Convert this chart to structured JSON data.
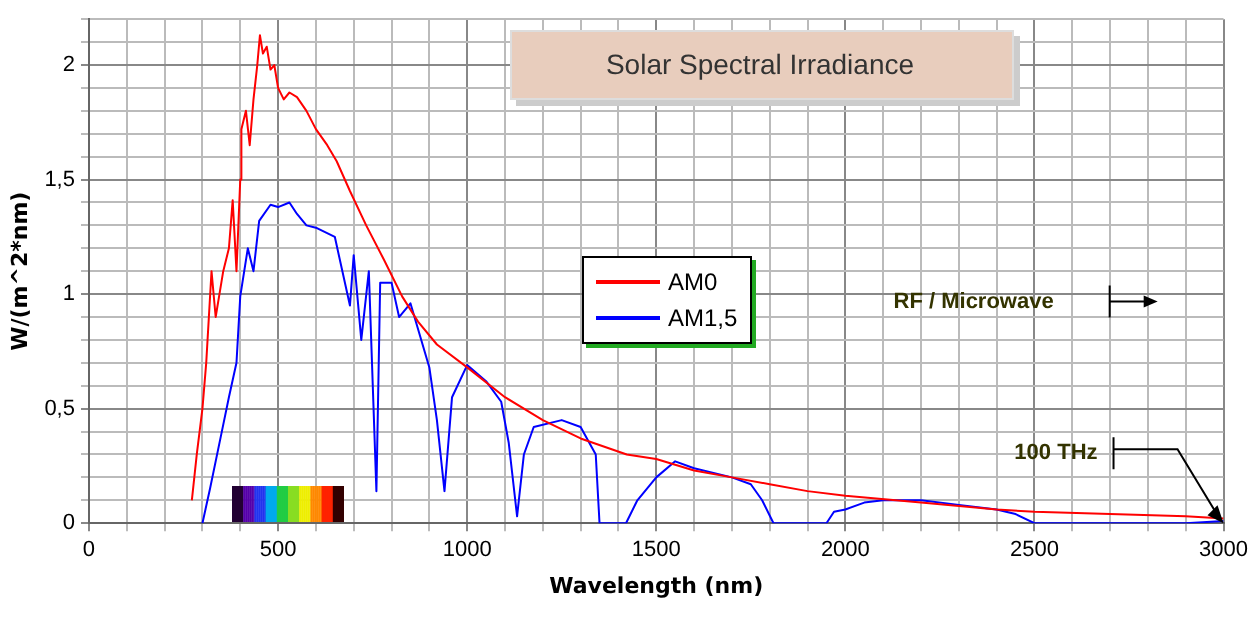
{
  "chart_data": {
    "type": "line",
    "title": "Solar Spectral Irradiance",
    "xlabel": "Wavelength (nm)",
    "ylabel": "W/(m^2*nm)",
    "xlim": [
      0,
      3000
    ],
    "ylim": [
      0,
      2.2
    ],
    "xticks": [
      0,
      {
        "value": 100,
        "label": null
      },
      {
        "value": 200,
        "label": null
      },
      {
        "value": 300,
        "label": null
      },
      {
        "value": 400,
        "label": null
      },
      500,
      {
        "value": 600,
        "label": null
      },
      {
        "value": 700,
        "label": null
      },
      {
        "value": 800,
        "label": null
      },
      {
        "value": 900,
        "label": null
      },
      1000,
      {
        "value": 1100,
        "label": null
      },
      {
        "value": 1200,
        "label": null
      },
      {
        "value": 1300,
        "label": null
      },
      {
        "value": 1400,
        "label": null
      },
      1500,
      {
        "value": 1600,
        "label": null
      },
      {
        "value": 1700,
        "label": null
      },
      {
        "value": 1800,
        "label": null
      },
      {
        "value": 1900,
        "label": null
      },
      2000,
      {
        "value": 2100,
        "label": null
      },
      {
        "value": 2200,
        "label": null
      },
      {
        "value": 2300,
        "label": null
      },
      {
        "value": 2400,
        "label": null
      },
      2500,
      {
        "value": 2600,
        "label": null
      },
      {
        "value": 2700,
        "label": null
      },
      {
        "value": 2800,
        "label": null
      },
      {
        "value": 2900,
        "label": null
      },
      3000
    ],
    "yticks": [
      0,
      {
        "value": 0.1,
        "label": null
      },
      {
        "value": 0.2,
        "label": null
      },
      {
        "value": 0.3,
        "label": null
      },
      {
        "value": 0.4,
        "label": null
      },
      {
        "value": 0.5,
        "label": "0,5"
      },
      {
        "value": 0.6,
        "label": null
      },
      {
        "value": 0.7,
        "label": null
      },
      {
        "value": 0.8,
        "label": null
      },
      {
        "value": 0.9,
        "label": null
      },
      1,
      {
        "value": 1.1,
        "label": null
      },
      {
        "value": 1.2,
        "label": null
      },
      {
        "value": 1.3,
        "label": null
      },
      {
        "value": 1.4,
        "label": null
      },
      {
        "value": 1.5,
        "label": "1,5"
      },
      {
        "value": 1.6,
        "label": null
      },
      {
        "value": 1.7,
        "label": null
      },
      {
        "value": 1.8,
        "label": null
      },
      {
        "value": 1.9,
        "label": null
      },
      2,
      {
        "value": 2.1,
        "label": null
      },
      {
        "value": 2.2,
        "label": null
      }
    ],
    "grid": true,
    "legend": "center",
    "marker": "none",
    "line_style": "solid",
    "series": [
      {
        "name": "AM0",
        "color": "#ff0000",
        "x": [
          272,
          285,
          300,
          310,
          324,
          335,
          345,
          355,
          370,
          380,
          390,
          400,
          403,
          415,
          425,
          435,
          445,
          452,
          460,
          470,
          480,
          490,
          500,
          515,
          530,
          550,
          575,
          600,
          630,
          655,
          690,
          733,
          780,
          828,
          870,
          920,
          1000,
          1100,
          1200,
          1300,
          1422,
          1500,
          1600,
          1700,
          1800,
          1900,
          2000,
          2200,
          2400,
          2500,
          2700,
          2900,
          3000
        ],
        "values": [
          0.1,
          0.3,
          0.5,
          0.7,
          1.1,
          0.9,
          1.0,
          1.1,
          1.2,
          1.41,
          1.1,
          1.5,
          1.72,
          1.8,
          1.65,
          1.85,
          2.0,
          2.13,
          2.05,
          2.08,
          1.98,
          2.0,
          1.9,
          1.85,
          1.88,
          1.86,
          1.8,
          1.72,
          1.65,
          1.58,
          1.45,
          1.3,
          1.15,
          0.99,
          0.88,
          0.78,
          0.68,
          0.55,
          0.45,
          0.37,
          0.3,
          0.28,
          0.23,
          0.2,
          0.17,
          0.14,
          0.12,
          0.09,
          0.06,
          0.05,
          0.04,
          0.03,
          0.02
        ]
      },
      {
        "name": "AM1,5",
        "color": "#0000ff",
        "x": [
          300,
          320,
          350,
          370,
          390,
          400,
          420,
          435,
          450,
          480,
          500,
          530,
          550,
          575,
          600,
          650,
          690,
          700,
          720,
          740,
          760,
          770,
          800,
          820,
          850,
          900,
          920,
          940,
          960,
          1000,
          1050,
          1090,
          1110,
          1132,
          1150,
          1176,
          1250,
          1300,
          1340,
          1350,
          1420,
          1450,
          1500,
          1550,
          1600,
          1700,
          1750,
          1780,
          1810,
          1950,
          1970,
          2000,
          2050,
          2100,
          2200,
          2300,
          2400,
          2450,
          2500,
          2900,
          3000
        ],
        "values": [
          0,
          0.15,
          0.39,
          0.55,
          0.7,
          0.99,
          1.2,
          1.1,
          1.32,
          1.39,
          1.38,
          1.4,
          1.35,
          1.3,
          1.29,
          1.25,
          0.95,
          1.17,
          0.8,
          1.1,
          0.14,
          1.05,
          1.05,
          0.9,
          0.96,
          0.68,
          0.45,
          0.14,
          0.55,
          0.69,
          0.62,
          0.53,
          0.35,
          0.03,
          0.3,
          0.42,
          0.45,
          0.42,
          0.3,
          0,
          0,
          0.1,
          0.2,
          0.27,
          0.24,
          0.2,
          0.17,
          0.1,
          0,
          0,
          0.05,
          0.06,
          0.09,
          0.1,
          0.1,
          0.08,
          0.06,
          0.04,
          0,
          0,
          0.01
        ]
      }
    ],
    "annotations": [
      "RF / Microwave",
      {
        "text": "100 THz",
        "x": 3000,
        "y": 0
      }
    ]
  }
}
